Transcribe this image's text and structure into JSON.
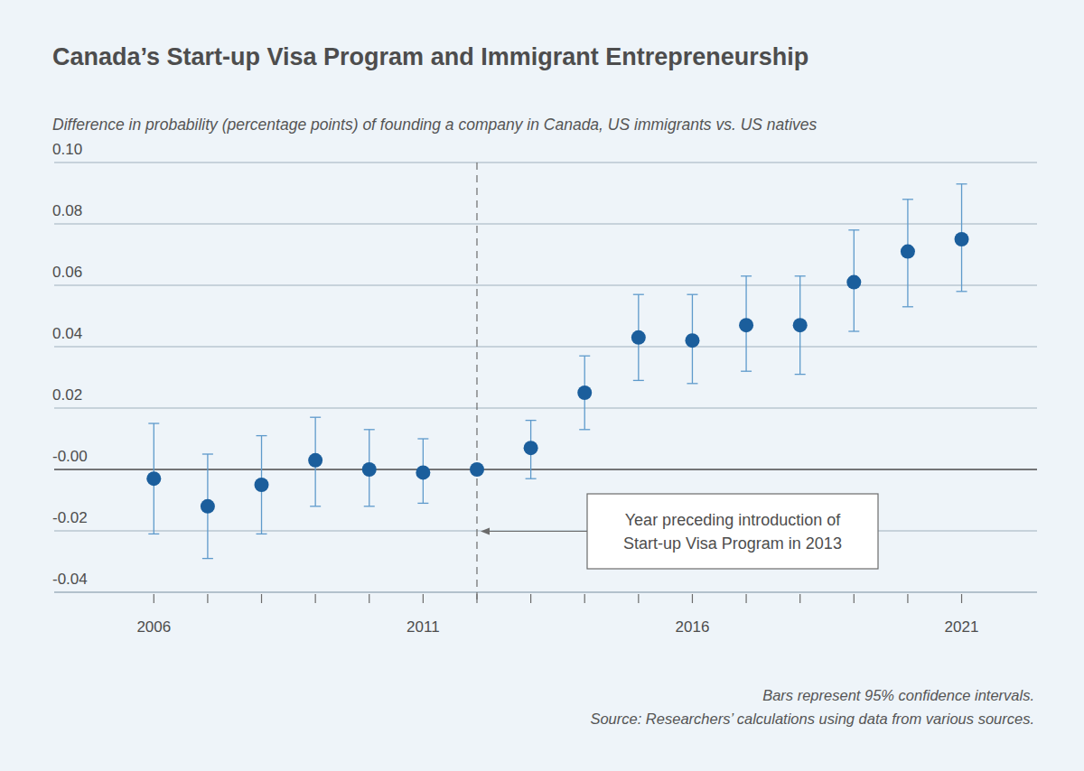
{
  "chart_data": {
    "type": "scatter",
    "title": "Canada’s Start-up Visa Program and Immigrant Entrepreneurship",
    "subtitle": "Difference in probability (percentage points) of founding a company in Canada, US immigrants vs. US natives",
    "notes": [
      "Bars represent 95% confidence intervals.",
      "Source: Researchers’ calculations using data from various sources."
    ],
    "x": [
      2006,
      2007,
      2008,
      2009,
      2010,
      2011,
      2012,
      2013,
      2014,
      2015,
      2016,
      2017,
      2018,
      2019,
      2020,
      2021
    ],
    "series": [
      {
        "name": "Difference in probability",
        "color": "#1b5e9c",
        "marker": "circle",
        "values": [
          -0.003,
          -0.012,
          -0.005,
          0.003,
          0.0,
          -0.001,
          0.0,
          0.007,
          0.025,
          0.043,
          0.042,
          0.047,
          0.047,
          0.061,
          0.071,
          0.075
        ],
        "ci_low": [
          -0.021,
          -0.029,
          -0.021,
          -0.012,
          -0.012,
          -0.011,
          null,
          -0.003,
          0.013,
          0.029,
          0.028,
          0.032,
          0.031,
          0.045,
          0.053,
          0.058
        ],
        "ci_high": [
          0.015,
          0.005,
          0.011,
          0.017,
          0.013,
          0.01,
          null,
          0.016,
          0.037,
          0.057,
          0.057,
          0.063,
          0.063,
          0.078,
          0.088,
          0.093
        ]
      }
    ],
    "xlim": [
      2004.15,
      2022.4
    ],
    "xticks": [
      2006,
      2011,
      2016,
      2021
    ],
    "ylim": [
      -0.04,
      0.1
    ],
    "yticks": [
      {
        "value": -0.04,
        "label": "-0.04"
      },
      {
        "value": -0.02,
        "label": "-0.02"
      },
      {
        "value": 0,
        "label": "-0.00"
      },
      0.02,
      0.04,
      0.06,
      0.08,
      {
        "value": 0.1,
        "label": "0.10"
      }
    ],
    "grid": true,
    "annotations": [
      {
        "text": [
          "Year preceding introduction of",
          "Start-up Visa Program in 2013"
        ],
        "x": 2012
      }
    ]
  }
}
